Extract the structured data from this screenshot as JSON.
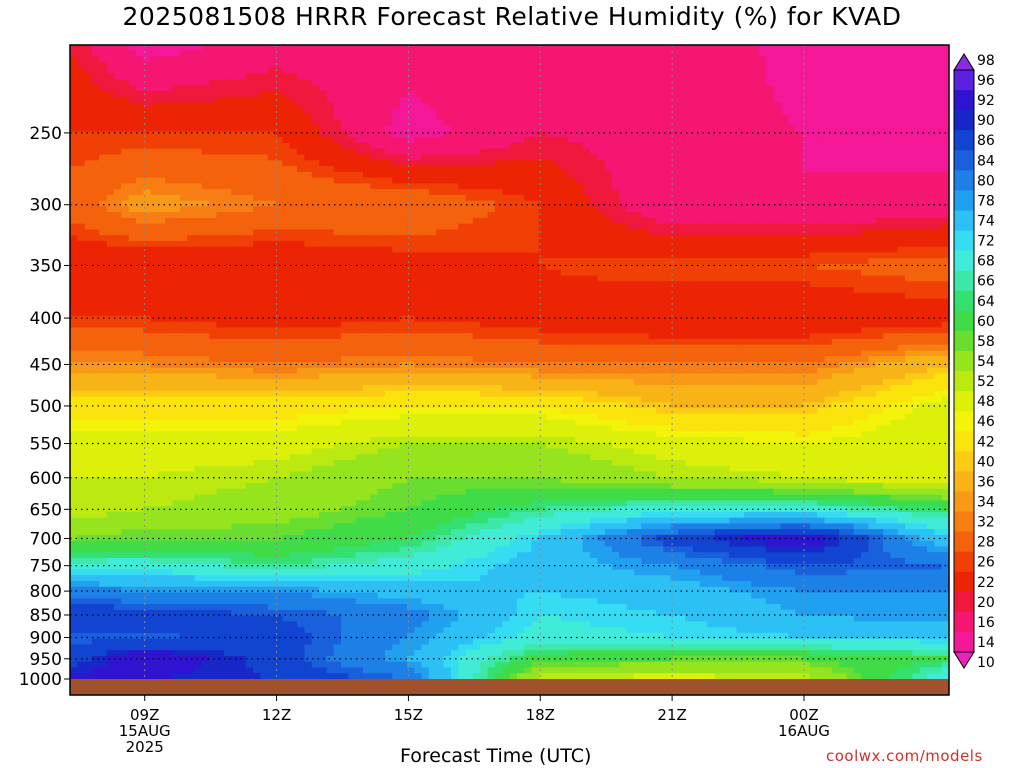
{
  "title": "2025081508 HRRR Forecast Relative Humidity (%) for KVAD",
  "credit": "coolwx.com/models",
  "colors": {
    "ground": "#a0522d",
    "credit": "#d0302a"
  },
  "chart_data": {
    "type": "heatmap",
    "title": "2025081508 HRRR Forecast Relative Humidity (%) for KVAD",
    "xlabel": "Forecast Time (UTC)",
    "ylabel": "",
    "x_ticks": [
      {
        "label": "09Z",
        "sub": [
          "15AUG",
          "2025"
        ]
      },
      {
        "label": "12Z",
        "sub": []
      },
      {
        "label": "15Z",
        "sub": []
      },
      {
        "label": "18Z",
        "sub": []
      },
      {
        "label": "21Z",
        "sub": []
      },
      {
        "label": "00Z",
        "sub": [
          "16AUG"
        ]
      }
    ],
    "x_hours": [
      9,
      12,
      15,
      18,
      21,
      24
    ],
    "xlim_hours": [
      7.3,
      27.3
    ],
    "y_ticks": [
      250,
      300,
      350,
      400,
      450,
      500,
      550,
      600,
      650,
      700,
      750,
      800,
      850,
      900,
      950,
      1000
    ],
    "ylim_hpa": [
      200,
      1000
    ],
    "y_scale": "log-pressure",
    "grid": true,
    "colorbar": {
      "levels": [
        98,
        96,
        92,
        90,
        86,
        84,
        80,
        78,
        74,
        72,
        68,
        66,
        64,
        60,
        58,
        54,
        52,
        48,
        46,
        42,
        40,
        36,
        34,
        32,
        28,
        26,
        22,
        20,
        16,
        14,
        10
      ],
      "colors": [
        "#8a2be2",
        "#5a22e0",
        "#2e14d0",
        "#1828c8",
        "#1244d2",
        "#1a60dc",
        "#1c80e6",
        "#22a0f0",
        "#2cc0f4",
        "#36dcf2",
        "#40ecd8",
        "#3ee8a8",
        "#34e070",
        "#40dc48",
        "#6ade30",
        "#96e41e",
        "#bcea10",
        "#dcf00a",
        "#f4f40a",
        "#fae40c",
        "#fccc14",
        "#f8b416",
        "#f89a16",
        "#f67e12",
        "#f4620c",
        "#f04006",
        "#ec2404",
        "#f0183c",
        "#f41670",
        "#f41898",
        "#f020c0"
      ],
      "arrows": true
    },
    "profiles": [
      {
        "hour": 7.3,
        "levels": [
          200,
          250,
          300,
          350,
          400,
          450,
          500,
          550,
          600,
          650,
          700,
          750,
          800,
          850,
          900,
          950,
          1000
        ],
        "rh": [
          22,
          26,
          30,
          22,
          26,
          34,
          44,
          50,
          52,
          52,
          58,
          70,
          82,
          90,
          85,
          88,
          94
        ]
      },
      {
        "hour": 9,
        "levels": [
          200,
          250,
          300,
          350,
          400,
          450,
          500,
          550,
          600,
          650,
          700,
          750,
          800,
          850,
          900,
          950,
          1000
        ],
        "rh": [
          14,
          26,
          36,
          22,
          26,
          34,
          44,
          50,
          52,
          54,
          60,
          70,
          80,
          88,
          85,
          96,
          92
        ]
      },
      {
        "hour": 12,
        "levels": [
          200,
          250,
          300,
          350,
          400,
          450,
          500,
          550,
          600,
          650,
          700,
          750,
          800,
          850,
          900,
          950,
          1000
        ],
        "rh": [
          18,
          26,
          32,
          22,
          24,
          32,
          44,
          50,
          54,
          56,
          60,
          66,
          80,
          86,
          88,
          88,
          90
        ]
      },
      {
        "hour": 15,
        "levels": [
          200,
          250,
          300,
          350,
          400,
          450,
          500,
          550,
          600,
          650,
          700,
          750,
          800,
          850,
          900,
          950,
          1000
        ],
        "rh": [
          18,
          14,
          32,
          24,
          26,
          34,
          46,
          54,
          58,
          60,
          64,
          70,
          76,
          82,
          80,
          78,
          84
        ]
      },
      {
        "hour": 18,
        "levels": [
          200,
          250,
          300,
          350,
          400,
          450,
          500,
          550,
          600,
          650,
          700,
          750,
          800,
          850,
          900,
          950,
          1000
        ],
        "rh": [
          20,
          20,
          26,
          26,
          24,
          32,
          46,
          54,
          58,
          66,
          74,
          76,
          74,
          72,
          70,
          62,
          52
        ]
      },
      {
        "hour": 21,
        "levels": [
          200,
          250,
          300,
          350,
          400,
          450,
          500,
          550,
          600,
          650,
          700,
          750,
          800,
          850,
          900,
          950,
          1000
        ],
        "rh": [
          20,
          18,
          16,
          28,
          22,
          32,
          40,
          50,
          54,
          70,
          88,
          80,
          76,
          74,
          72,
          60,
          50
        ]
      },
      {
        "hour": 24,
        "levels": [
          200,
          250,
          300,
          350,
          400,
          450,
          500,
          550,
          600,
          650,
          700,
          750,
          800,
          850,
          900,
          950,
          1000
        ],
        "rh": [
          14,
          16,
          16,
          28,
          22,
          32,
          40,
          48,
          52,
          70,
          96,
          86,
          80,
          78,
          74,
          60,
          52
        ]
      },
      {
        "hour": 27.3,
        "levels": [
          200,
          250,
          300,
          350,
          400,
          450,
          500,
          550,
          600,
          650,
          700,
          750,
          800,
          850,
          900,
          950,
          1000
        ],
        "rh": [
          14,
          14,
          18,
          30,
          24,
          40,
          50,
          52,
          48,
          64,
          74,
          84,
          80,
          80,
          74,
          64,
          72
        ]
      }
    ]
  }
}
